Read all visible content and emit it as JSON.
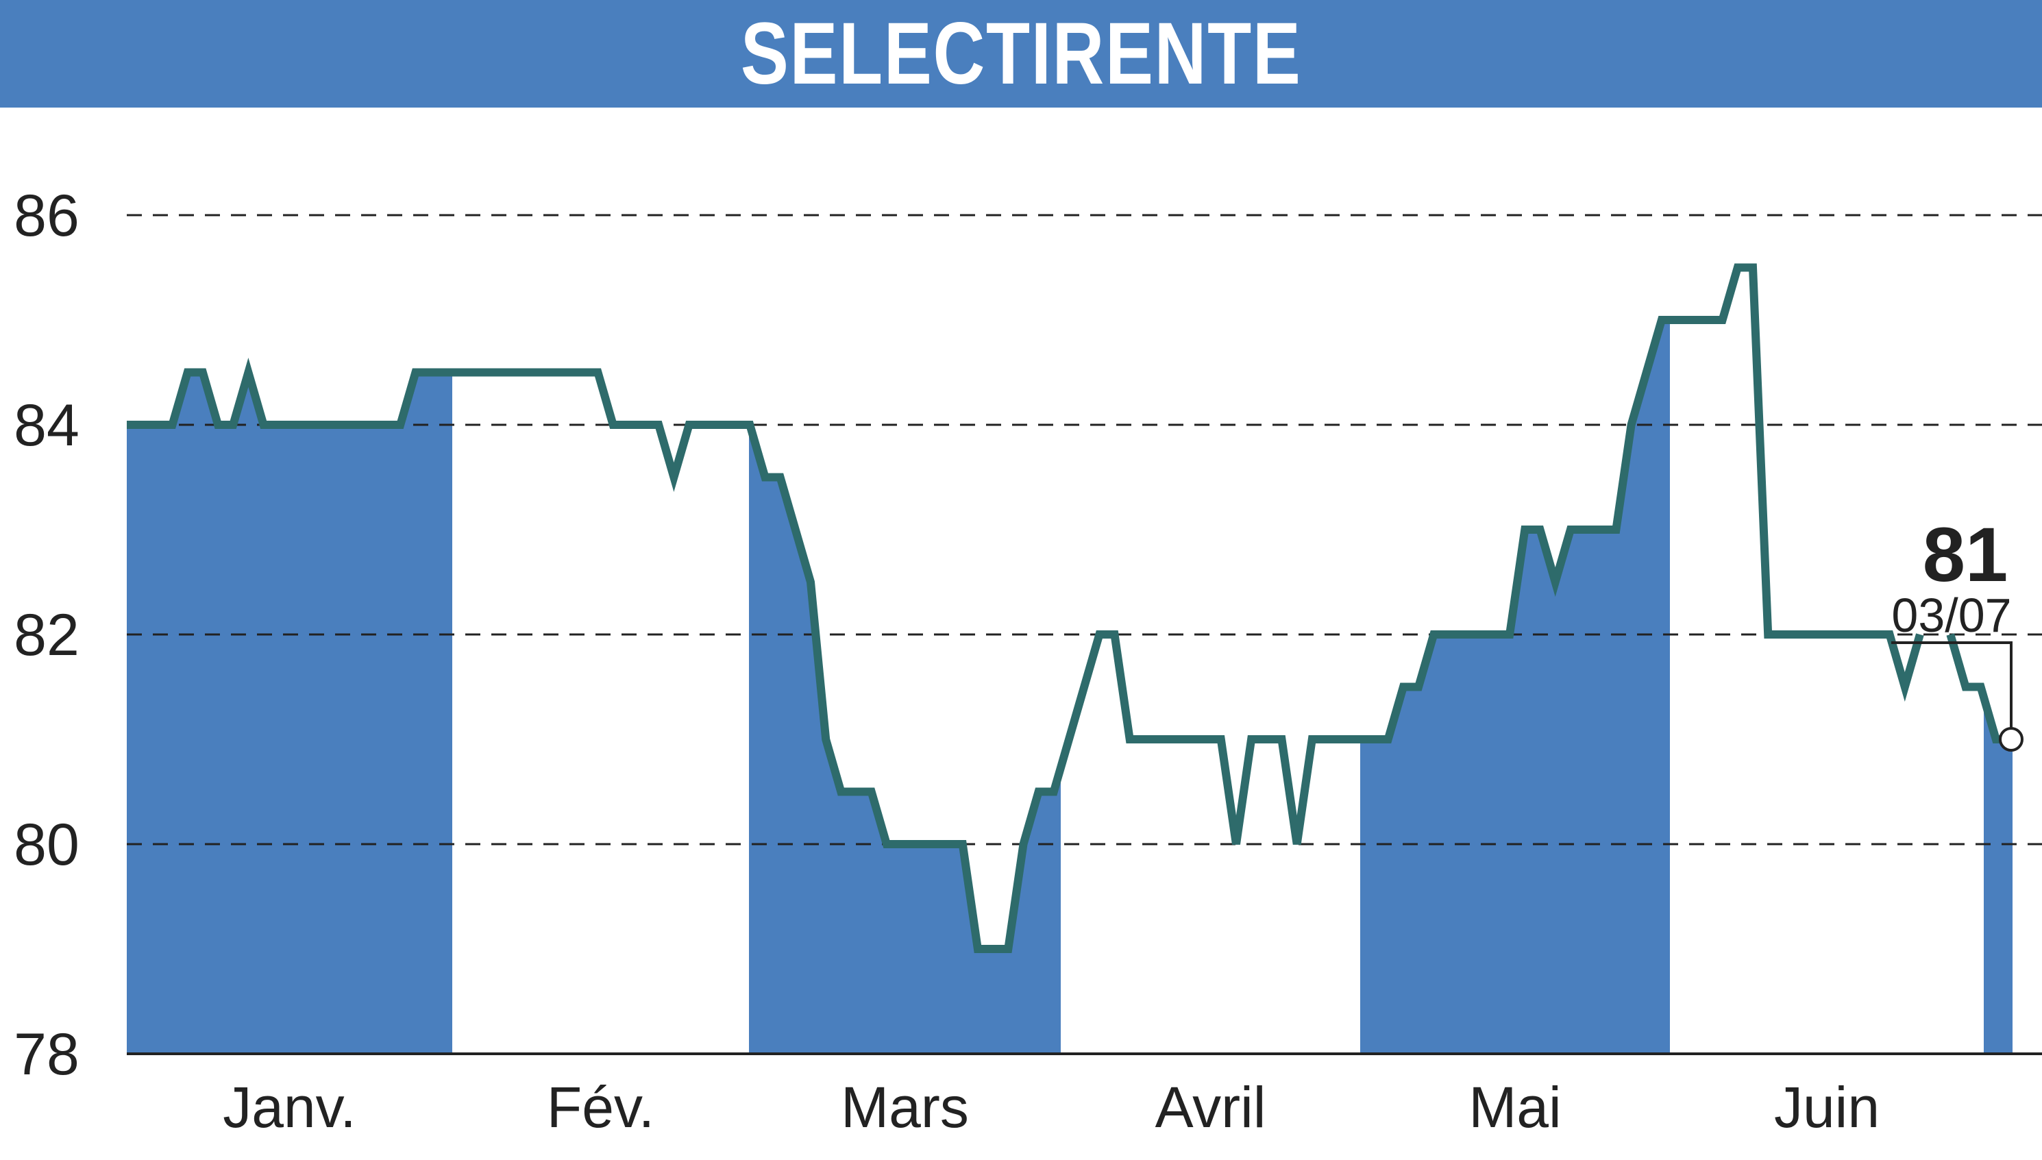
{
  "chart_data": {
    "type": "line",
    "title": "SELECTIRENTE",
    "xlabel": "",
    "ylabel": "",
    "ylim": [
      78,
      86
    ],
    "yticks": [
      "78",
      "80",
      "82",
      "84",
      "86"
    ],
    "grid": "horizontal dashed",
    "months": [
      "Janv.",
      "Fév.",
      "Mars",
      "Avril",
      "Mai",
      "Juin"
    ],
    "month_shading": "alternating months filled under the price line (Janv., Mars, Mai, Juillet)",
    "series": [
      {
        "values": [
          84,
          84,
          84,
          84,
          84.5,
          84.5,
          84,
          84,
          84.5,
          84,
          84,
          84,
          84,
          84,
          84,
          84,
          84,
          84,
          84,
          84.5,
          84.5,
          84.5,
          84.5,
          84.5,
          84.5,
          84.5,
          84.5,
          84.5,
          84.5,
          84.5,
          84.5,
          84.5,
          84,
          84,
          84,
          84,
          83.5,
          84,
          84,
          84,
          84,
          84,
          83.5,
          83.5,
          83,
          82.5,
          81,
          80.5,
          80.5,
          80.5,
          80,
          80,
          80,
          80,
          80,
          80,
          79,
          79,
          79,
          80,
          80.5,
          80.5,
          81,
          81.5,
          82,
          82,
          81,
          81,
          81,
          81,
          81,
          81,
          81,
          80,
          81,
          81,
          81,
          80,
          81,
          81,
          81,
          81,
          81,
          81,
          81.5,
          81.5,
          82,
          82,
          82,
          82,
          82,
          82,
          83,
          83,
          82.5,
          83,
          83,
          83,
          83,
          84,
          84.5,
          85,
          85,
          85,
          85,
          85,
          85.5,
          85.5,
          82,
          82,
          82,
          82,
          82,
          82,
          82,
          82,
          82,
          81.5,
          82,
          null,
          82,
          81.5,
          81.5,
          81,
          81
        ]
      }
    ],
    "last_value": "81",
    "last_date": "03/07"
  },
  "colors": {
    "header": "#4a7fbe",
    "fill": "#4a7fbe",
    "line": "#2e6b6b",
    "grid": "#222222",
    "axis": "#222222"
  }
}
